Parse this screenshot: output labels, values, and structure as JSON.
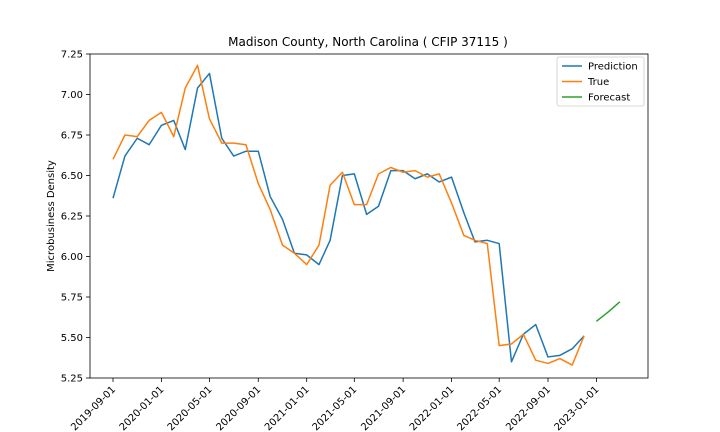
{
  "chart_data": {
    "type": "line",
    "title": "Madison County, North Carolina ( CFIP 37115 )",
    "xlabel": "",
    "ylabel": "Microbusiness Density",
    "ylim": [
      5.25,
      7.25
    ],
    "xlim": [
      "2019-07-05",
      "2023-05-11"
    ],
    "grid": false,
    "legend_position": "top-right",
    "x_ticks": [
      "2019-09-01",
      "2020-01-01",
      "2020-05-01",
      "2020-09-01",
      "2021-01-01",
      "2021-05-01",
      "2021-09-01",
      "2022-01-01",
      "2022-05-01",
      "2022-09-01",
      "2023-01-01"
    ],
    "y_ticks": [
      "5.25",
      "5.50",
      "5.75",
      "6.00",
      "6.25",
      "6.50",
      "6.75",
      "7.00",
      "7.25"
    ],
    "series": [
      {
        "name": "Prediction",
        "color": "#1f77b4",
        "points": [
          [
            "2019-09-01",
            6.36
          ],
          [
            "2019-10-01",
            6.62
          ],
          [
            "2019-11-01",
            6.73
          ],
          [
            "2019-12-01",
            6.69
          ],
          [
            "2020-01-01",
            6.81
          ],
          [
            "2020-02-01",
            6.84
          ],
          [
            "2020-03-01",
            6.66
          ],
          [
            "2020-04-01",
            7.04
          ],
          [
            "2020-05-01",
            7.13
          ],
          [
            "2020-06-01",
            6.73
          ],
          [
            "2020-07-01",
            6.62
          ],
          [
            "2020-08-01",
            6.65
          ],
          [
            "2020-09-01",
            6.65
          ],
          [
            "2020-10-01",
            6.37
          ],
          [
            "2020-11-01",
            6.23
          ],
          [
            "2020-12-01",
            6.02
          ],
          [
            "2021-01-01",
            6.01
          ],
          [
            "2021-02-01",
            5.95
          ],
          [
            "2021-03-01",
            6.1
          ],
          [
            "2021-04-01",
            6.5
          ],
          [
            "2021-05-01",
            6.51
          ],
          [
            "2021-06-01",
            6.26
          ],
          [
            "2021-07-01",
            6.31
          ],
          [
            "2021-08-01",
            6.53
          ],
          [
            "2021-09-01",
            6.53
          ],
          [
            "2021-10-01",
            6.48
          ],
          [
            "2021-11-01",
            6.51
          ],
          [
            "2021-12-01",
            6.46
          ],
          [
            "2022-01-01",
            6.49
          ],
          [
            "2022-02-01",
            6.27
          ],
          [
            "2022-03-01",
            6.09
          ],
          [
            "2022-04-01",
            6.1
          ],
          [
            "2022-05-01",
            6.08
          ],
          [
            "2022-06-01",
            5.35
          ],
          [
            "2022-07-01",
            5.52
          ],
          [
            "2022-08-01",
            5.58
          ],
          [
            "2022-09-01",
            5.38
          ],
          [
            "2022-10-01",
            5.39
          ],
          [
            "2022-11-01",
            5.43
          ],
          [
            "2022-12-01",
            5.51
          ]
        ]
      },
      {
        "name": "True",
        "color": "#ff7f0e",
        "points": [
          [
            "2019-09-01",
            6.6
          ],
          [
            "2019-10-01",
            6.75
          ],
          [
            "2019-11-01",
            6.74
          ],
          [
            "2019-12-01",
            6.84
          ],
          [
            "2020-01-01",
            6.89
          ],
          [
            "2020-02-01",
            6.74
          ],
          [
            "2020-03-01",
            7.04
          ],
          [
            "2020-04-01",
            7.18
          ],
          [
            "2020-05-01",
            6.85
          ],
          [
            "2020-06-01",
            6.7
          ],
          [
            "2020-07-01",
            6.7
          ],
          [
            "2020-08-01",
            6.69
          ],
          [
            "2020-09-01",
            6.45
          ],
          [
            "2020-10-01",
            6.29
          ],
          [
            "2020-11-01",
            6.07
          ],
          [
            "2020-12-01",
            6.02
          ],
          [
            "2021-01-01",
            5.95
          ],
          [
            "2021-02-01",
            6.07
          ],
          [
            "2021-03-01",
            6.44
          ],
          [
            "2021-04-01",
            6.52
          ],
          [
            "2021-05-01",
            6.32
          ],
          [
            "2021-06-01",
            6.32
          ],
          [
            "2021-07-01",
            6.51
          ],
          [
            "2021-08-01",
            6.55
          ],
          [
            "2021-09-01",
            6.52
          ],
          [
            "2021-10-01",
            6.53
          ],
          [
            "2021-11-01",
            6.49
          ],
          [
            "2021-12-01",
            6.51
          ],
          [
            "2022-01-01",
            6.33
          ],
          [
            "2022-02-01",
            6.13
          ],
          [
            "2022-03-01",
            6.1
          ],
          [
            "2022-04-01",
            6.08
          ],
          [
            "2022-05-01",
            5.45
          ],
          [
            "2022-06-01",
            5.46
          ],
          [
            "2022-07-01",
            5.52
          ],
          [
            "2022-08-01",
            5.36
          ],
          [
            "2022-09-01",
            5.34
          ],
          [
            "2022-10-01",
            5.37
          ],
          [
            "2022-11-01",
            5.33
          ],
          [
            "2022-12-01",
            5.51
          ]
        ]
      },
      {
        "name": "Forecast",
        "color": "#2ca02c",
        "points": [
          [
            "2023-01-01",
            5.6
          ],
          [
            "2023-02-01",
            5.66
          ],
          [
            "2023-03-01",
            5.72
          ]
        ]
      }
    ]
  }
}
